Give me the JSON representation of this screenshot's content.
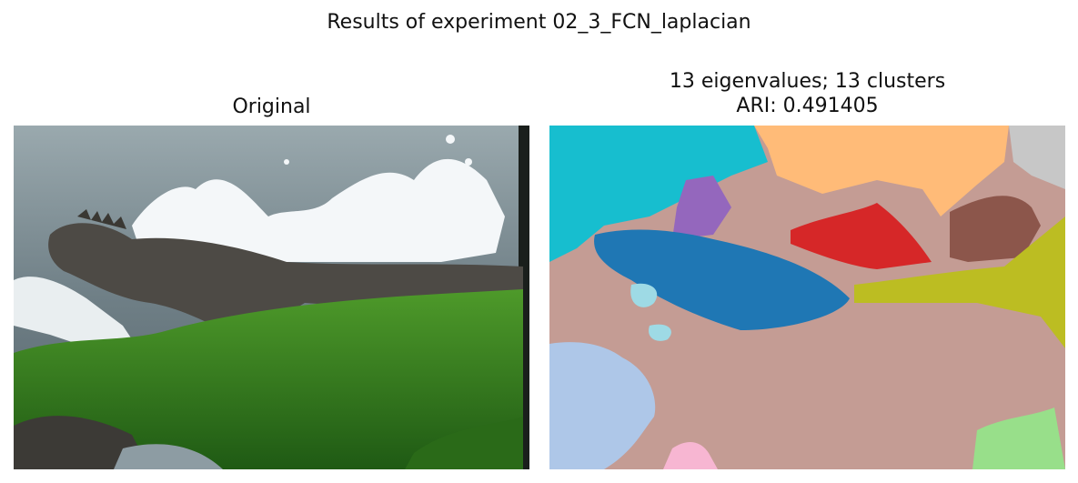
{
  "figure": {
    "suptitle": "Results of experiment 02_3_FCN_laplacian"
  },
  "panels": [
    {
      "title": "Original"
    },
    {
      "title_line1": "13 eigenvalues; 13 clusters",
      "title_line2": "ARI: 0.491405"
    }
  ],
  "colors": {
    "water": "#8d9ca3",
    "splash": "#f4f7f9",
    "iguana": "#4d4a45",
    "moss": "#2f7d1f",
    "rock": "#3c3a36",
    "cluster_cyan": "#17becf",
    "cluster_orange": "#ffbb78",
    "cluster_tan": "#c49c94",
    "cluster_blue": "#1f77b4",
    "cluster_red": "#d62728",
    "cluster_olive": "#bcbd22",
    "cluster_brown": "#8c564b",
    "cluster_purple": "#9467bd",
    "cluster_lightblue": "#aec7e8",
    "cluster_green": "#98df8a",
    "cluster_pink": "#f7b6d2",
    "cluster_gray": "#c7c7c7",
    "cluster_paleblue": "#9edae5"
  }
}
